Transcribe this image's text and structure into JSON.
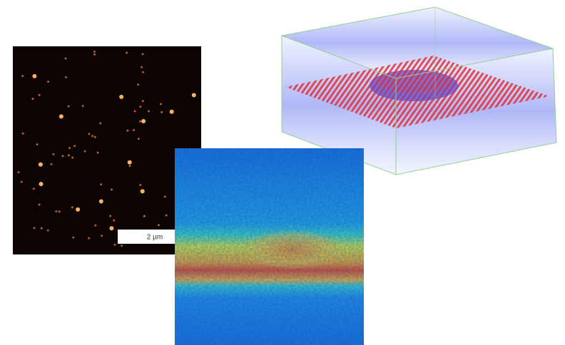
{
  "scale_bar": {
    "label": "2 µm"
  }
}
